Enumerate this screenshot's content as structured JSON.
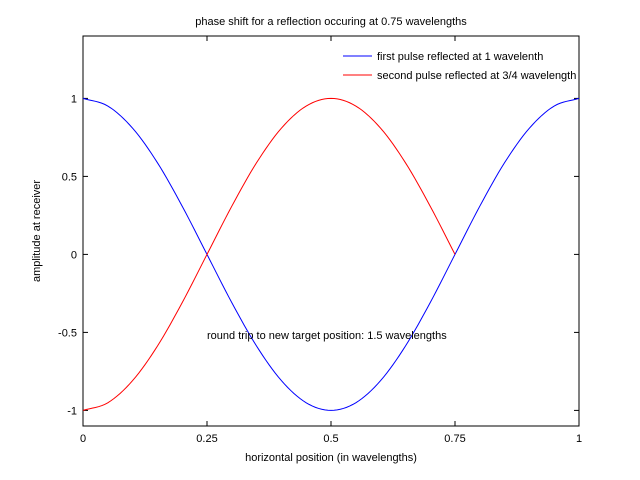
{
  "chart_data": {
    "type": "line",
    "title": "phase shift for a reflection occuring at 0.75 wavelengths",
    "xlabel": "horizontal position (in wavelengths)",
    "ylabel": "amplitude at receiver",
    "xlim": [
      0,
      1
    ],
    "ylim": [
      -1.1,
      1.4
    ],
    "xticks": [
      0,
      0.25,
      0.5,
      0.75,
      1
    ],
    "xtick_labels": [
      "0",
      "0.25",
      "0.5",
      "0.75",
      "1"
    ],
    "yticks": [
      -1,
      -0.5,
      0,
      0.5,
      1
    ],
    "ytick_labels": [
      "-1",
      "-0.5",
      "0",
      "0.5",
      "1"
    ],
    "grid": false,
    "legend_position": "top-right",
    "annotation": "round trip to new target position: 1.5 wavelengths",
    "series": [
      {
        "name": "first pulse reflected at 1 wavelenth",
        "color": "#0000ff",
        "x": [
          0,
          0.05,
          0.1,
          0.15,
          0.2,
          0.25,
          0.3,
          0.35,
          0.4,
          0.45,
          0.5,
          0.55,
          0.6,
          0.65,
          0.7,
          0.75,
          0.8,
          0.85,
          0.9,
          0.95,
          1
        ],
        "y": [
          1,
          0.951,
          0.809,
          0.588,
          0.309,
          0,
          -0.309,
          -0.588,
          -0.809,
          -0.951,
          -1,
          -0.951,
          -0.809,
          -0.588,
          -0.309,
          0,
          0.309,
          0.588,
          0.809,
          0.951,
          1
        ]
      },
      {
        "name": "second pulse reflected at 3/4 wavelength",
        "color": "#ff0000",
        "x": [
          0,
          0.05,
          0.1,
          0.15,
          0.2,
          0.25,
          0.3,
          0.35,
          0.4,
          0.45,
          0.5,
          0.55,
          0.6,
          0.65,
          0.7,
          0.75
        ],
        "y": [
          -1,
          -0.951,
          -0.809,
          -0.588,
          -0.309,
          0,
          0.309,
          0.588,
          0.809,
          0.951,
          1,
          0.951,
          0.809,
          0.588,
          0.309,
          0
        ]
      }
    ]
  }
}
